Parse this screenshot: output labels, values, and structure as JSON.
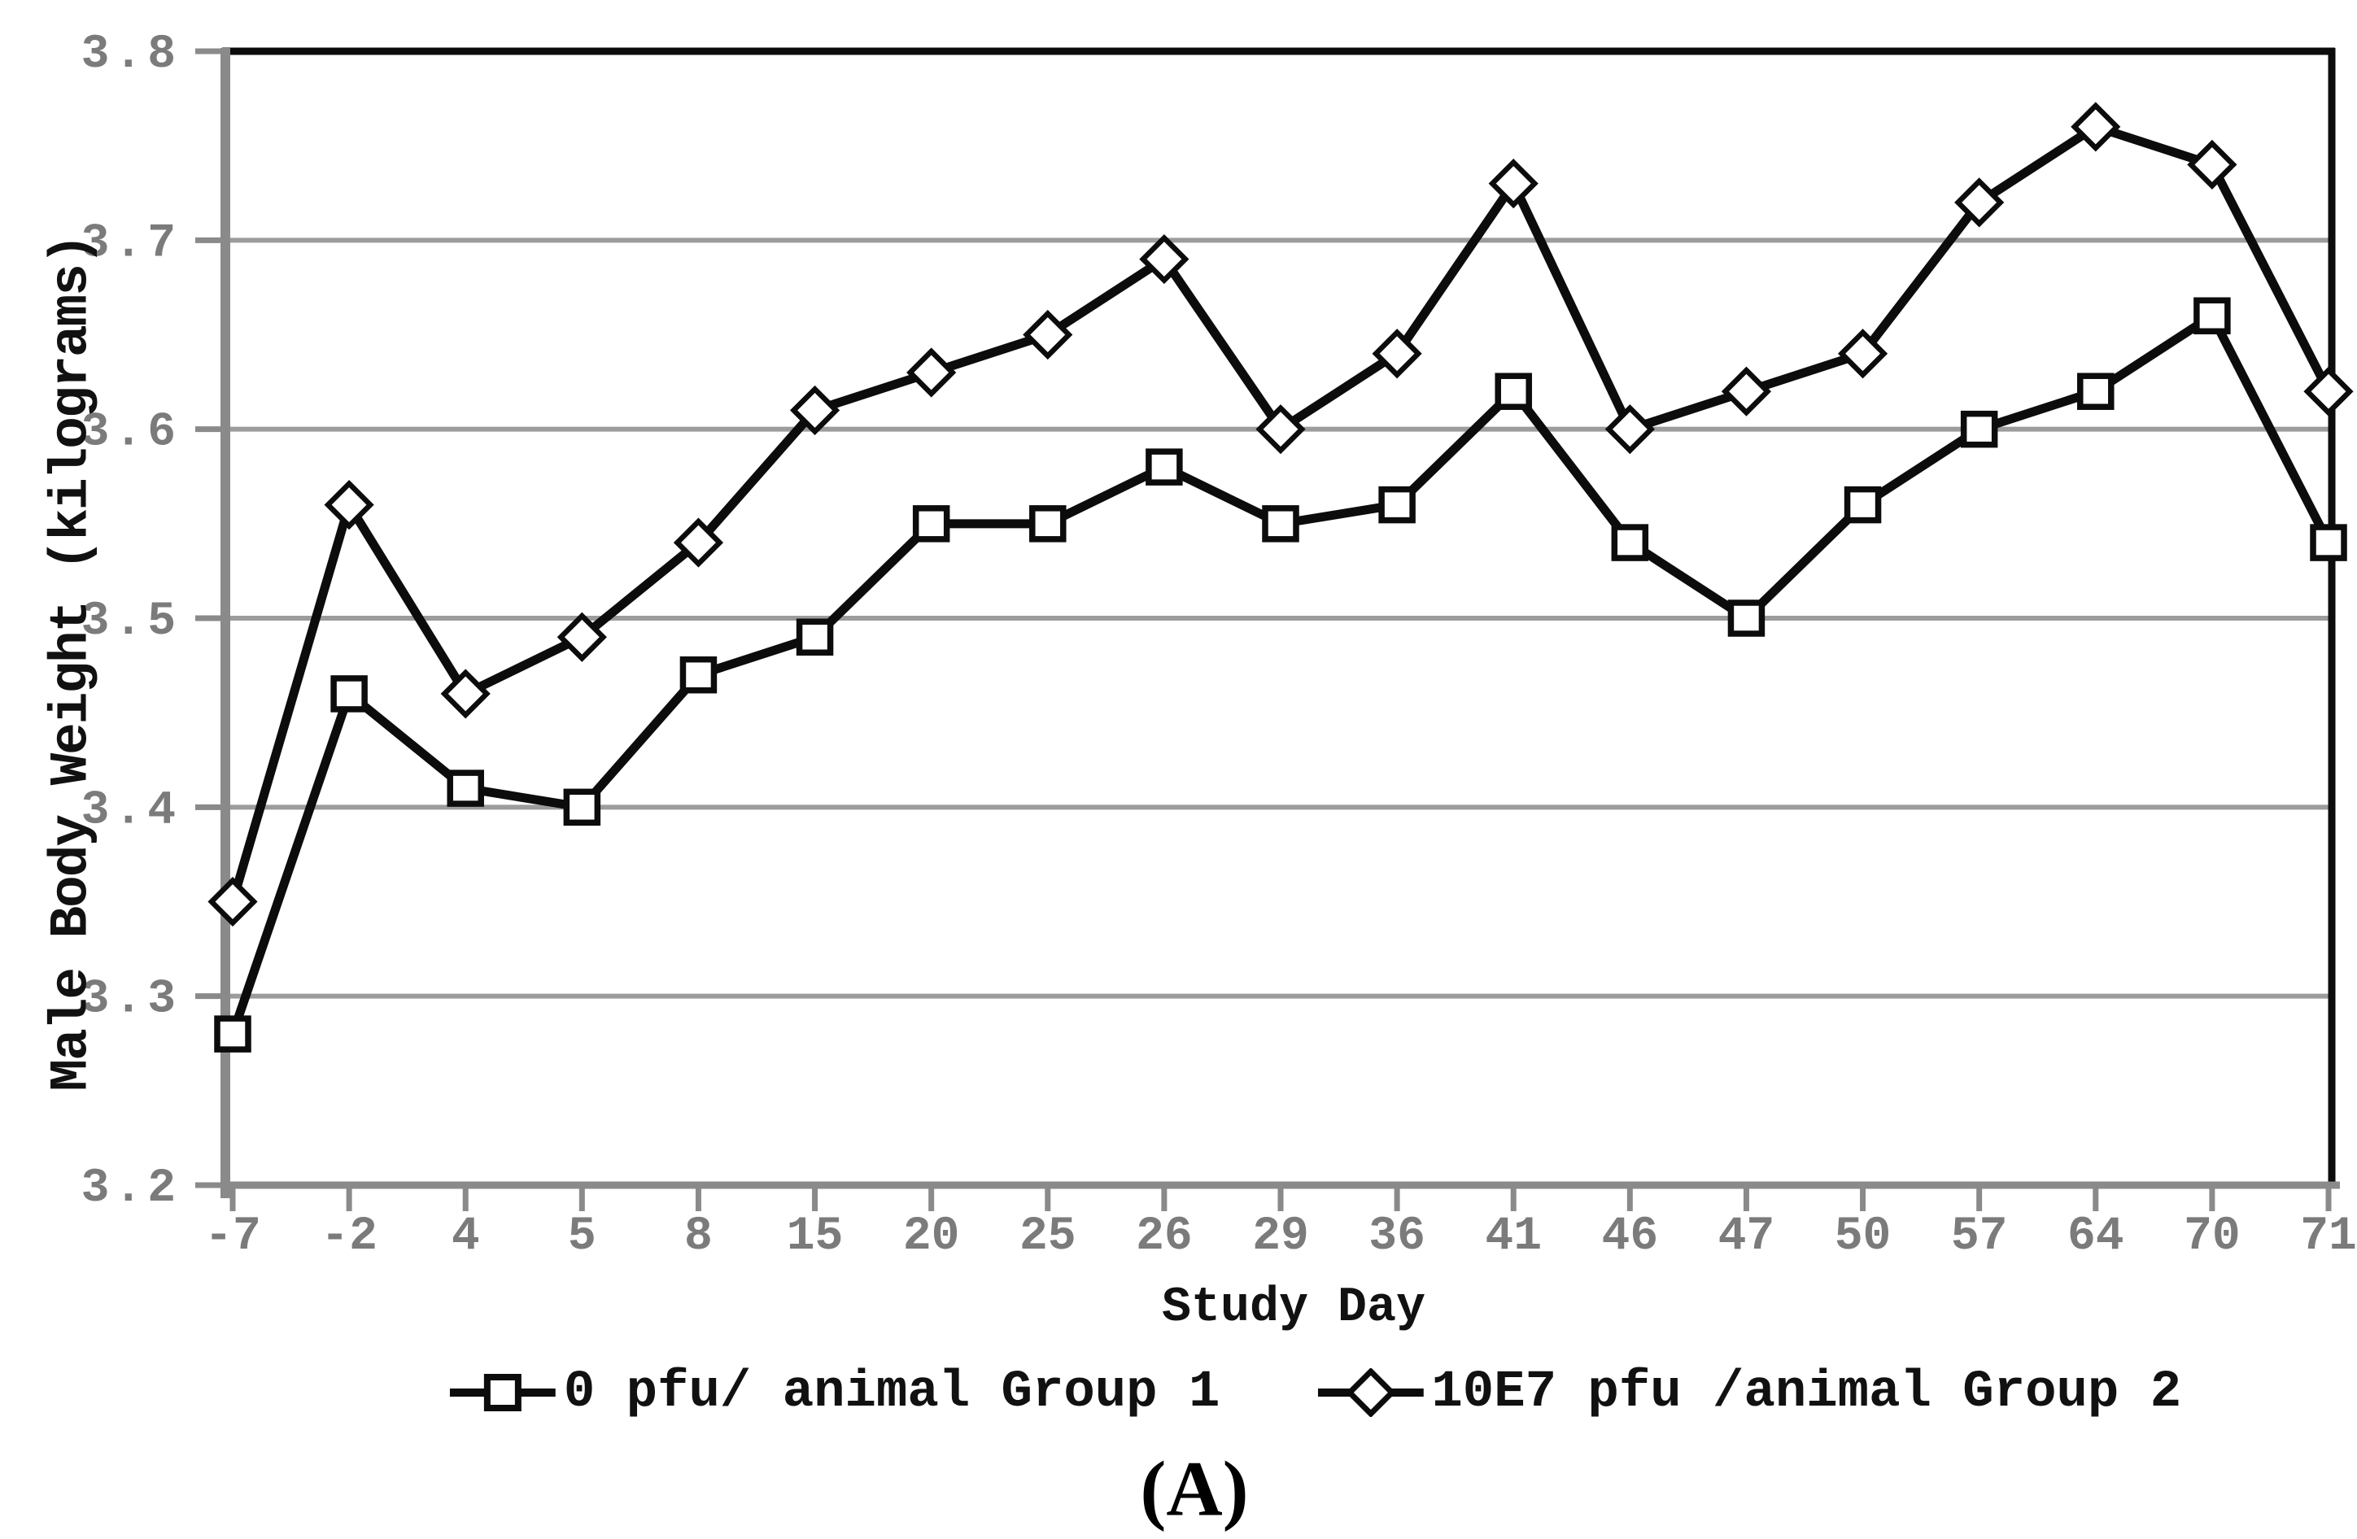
{
  "figure": {
    "caption": "(A)",
    "background": "#ffffff"
  },
  "chart_data": {
    "type": "line",
    "title": "",
    "xlabel": "Study Day",
    "ylabel": "Male Body Weight (kilograms)",
    "categories": [
      "-7",
      "-2",
      "4",
      "5",
      "8",
      "15",
      "20",
      "25",
      "26",
      "29",
      "36",
      "41",
      "46",
      "47",
      "50",
      "57",
      "64",
      "70",
      "71"
    ],
    "ylim": [
      3.2,
      3.8
    ],
    "yticks": [
      3.2,
      3.3,
      3.4,
      3.5,
      3.6,
      3.7,
      3.8
    ],
    "grid": true,
    "legend_position": "bottom",
    "series": [
      {
        "name": "0 pfu/ animal Group 1",
        "marker": "square",
        "color": "#0c0c0c",
        "values": [
          3.28,
          3.46,
          3.41,
          3.4,
          3.47,
          3.49,
          3.55,
          3.55,
          3.58,
          3.55,
          3.56,
          3.62,
          3.54,
          3.5,
          3.56,
          3.6,
          3.62,
          3.66,
          3.54
        ]
      },
      {
        "name": "10E7 pfu /animal Group 2",
        "marker": "diamond",
        "color": "#0c0c0c",
        "values": [
          3.35,
          3.56,
          3.46,
          3.49,
          3.54,
          3.61,
          3.63,
          3.65,
          3.69,
          3.6,
          3.64,
          3.73,
          3.6,
          3.62,
          3.64,
          3.72,
          3.76,
          3.74,
          3.62
        ]
      }
    ],
    "colors": {
      "series": "#0c0c0c",
      "grid": "#9c9c9c",
      "axis": "#8a8a8a",
      "tick_label": "#7b7b7b",
      "border": "#0c0c0c",
      "background": "#ffffff"
    }
  }
}
